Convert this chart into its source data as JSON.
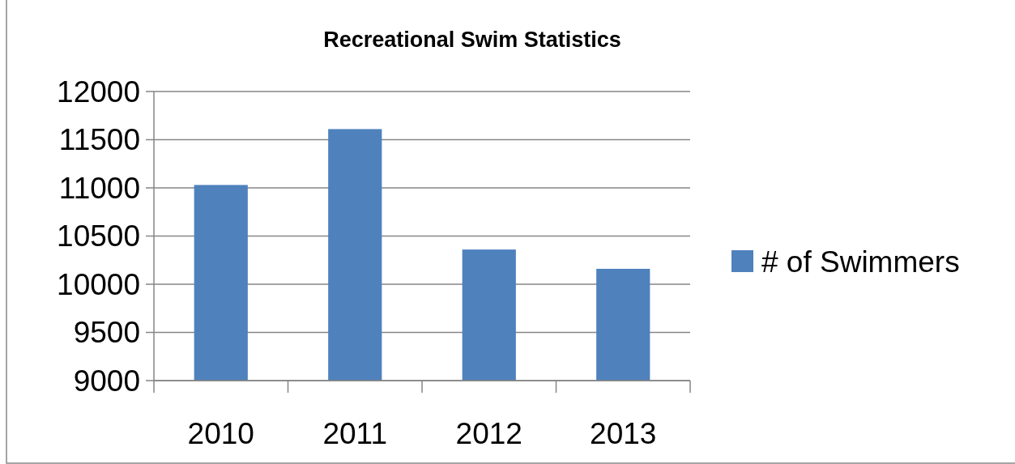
{
  "chart_data": {
    "type": "bar",
    "title": "Recreational Swim Statistics",
    "categories": [
      "2010",
      "2011",
      "2012",
      "2013"
    ],
    "series": [
      {
        "name": "# of Swimmers",
        "color": "#4f81bd",
        "values": [
          11030,
          11610,
          10360,
          10160
        ]
      }
    ],
    "ylim": [
      9000,
      12000
    ],
    "yticks": [
      9000,
      9500,
      10000,
      10500,
      11000,
      11500,
      12000
    ],
    "grid": "y",
    "legend": "right"
  }
}
